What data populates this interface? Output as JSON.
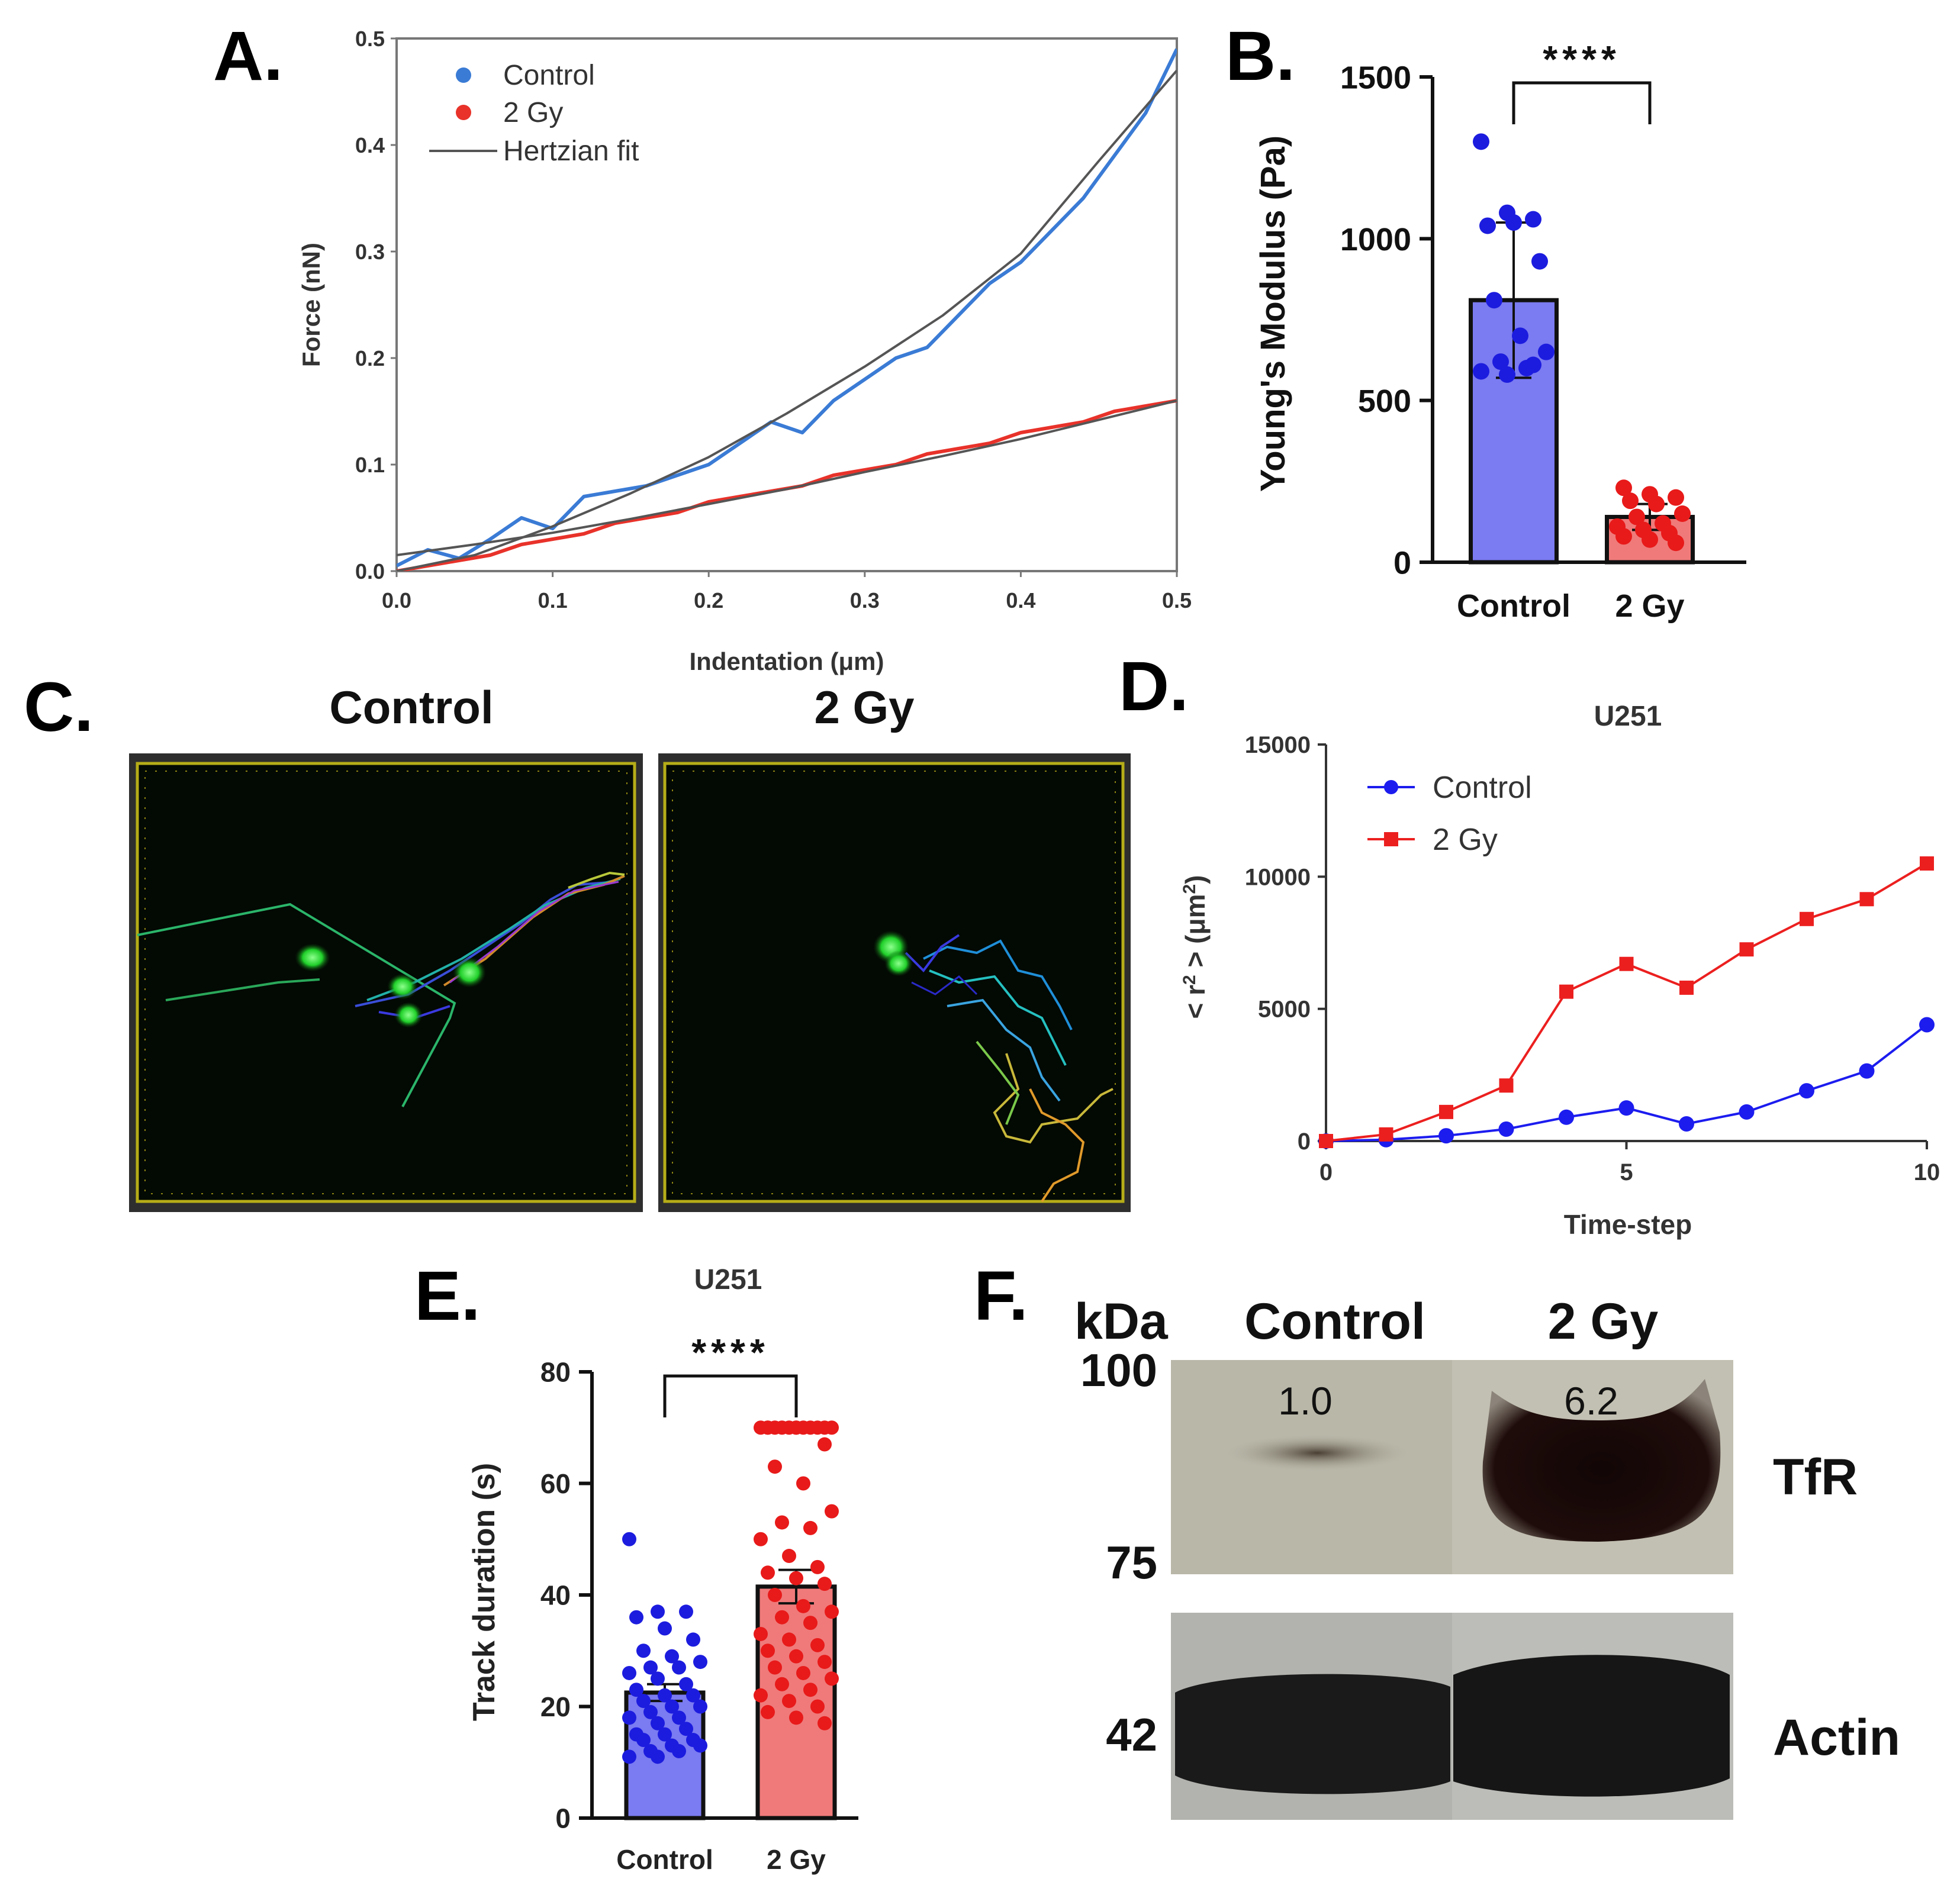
{
  "panels": {
    "A": {
      "letter": "A."
    },
    "B": {
      "letter": "B."
    },
    "C": {
      "letter": "C.",
      "titles": [
        "Control",
        "2 Gy"
      ]
    },
    "D": {
      "letter": "D."
    },
    "E": {
      "letter": "E."
    },
    "F": {
      "letter": "F."
    }
  },
  "chart_data": [
    {
      "id": "A",
      "type": "line",
      "title": "",
      "xlabel": "Indentation (μm)",
      "ylabel": "Force (nN)",
      "xlim": [
        0.0,
        0.5
      ],
      "ylim": [
        0.0,
        0.5
      ],
      "xticks": [
        "0.0",
        "0.1",
        "0.2",
        "0.3",
        "0.4",
        "0.5"
      ],
      "yticks": [
        "0.0",
        "0.1",
        "0.2",
        "0.3",
        "0.4",
        "0.5"
      ],
      "legend_position": "top-left",
      "series": [
        {
          "name": "Control",
          "color": "#3a7bd5",
          "x": [
            0.0,
            0.02,
            0.04,
            0.06,
            0.08,
            0.1,
            0.12,
            0.14,
            0.16,
            0.18,
            0.2,
            0.22,
            0.24,
            0.26,
            0.28,
            0.3,
            0.32,
            0.34,
            0.36,
            0.38,
            0.4,
            0.42,
            0.44,
            0.46,
            0.48,
            0.5
          ],
          "y": [
            0.005,
            0.02,
            0.012,
            0.03,
            0.05,
            0.04,
            0.07,
            0.075,
            0.08,
            0.09,
            0.1,
            0.12,
            0.14,
            0.13,
            0.16,
            0.18,
            0.2,
            0.21,
            0.24,
            0.27,
            0.29,
            0.32,
            0.35,
            0.39,
            0.43,
            0.49
          ]
        },
        {
          "name": "2 Gy",
          "color": "#e8322a",
          "x": [
            0.0,
            0.02,
            0.04,
            0.06,
            0.08,
            0.1,
            0.12,
            0.14,
            0.16,
            0.18,
            0.2,
            0.22,
            0.24,
            0.26,
            0.28,
            0.3,
            0.32,
            0.34,
            0.36,
            0.38,
            0.4,
            0.42,
            0.44,
            0.46,
            0.48,
            0.5
          ],
          "y": [
            0.0,
            0.005,
            0.01,
            0.015,
            0.025,
            0.03,
            0.035,
            0.045,
            0.05,
            0.055,
            0.065,
            0.07,
            0.075,
            0.08,
            0.09,
            0.095,
            0.1,
            0.11,
            0.115,
            0.12,
            0.13,
            0.135,
            0.14,
            0.15,
            0.155,
            0.16
          ]
        },
        {
          "name": "Hertzian fit",
          "color": "#555555",
          "x": [
            0.0,
            0.05,
            0.1,
            0.15,
            0.2,
            0.25,
            0.3,
            0.35,
            0.4,
            0.45,
            0.5
          ],
          "y": [
            0.0,
            0.015,
            0.042,
            0.073,
            0.107,
            0.148,
            0.192,
            0.24,
            0.298,
            0.385,
            0.47
          ]
        },
        {
          "name": "",
          "color": "#555555",
          "x": [
            0.0,
            0.05,
            0.1,
            0.15,
            0.2,
            0.25,
            0.3,
            0.35,
            0.4,
            0.45,
            0.5
          ],
          "y": [
            0.015,
            0.025,
            0.036,
            0.049,
            0.063,
            0.077,
            0.093,
            0.108,
            0.124,
            0.142,
            0.16
          ]
        }
      ]
    },
    {
      "id": "B",
      "type": "bar",
      "title": "",
      "xlabel": "",
      "ylabel": "Young's Modulus (Pa)",
      "ylim": [
        0,
        1500
      ],
      "yticks": [
        "0",
        "500",
        "1000",
        "1500"
      ],
      "categories": [
        "Control",
        "2 Gy"
      ],
      "values": [
        810,
        140
      ],
      "errors": [
        240,
        40
      ],
      "colors": [
        "#7b7bf2",
        "#f07a7a"
      ],
      "dot_colors": [
        "#1c1cdf",
        "#e81a1a"
      ],
      "points": [
        [
          1300,
          1080,
          1060,
          1040,
          1050,
          930,
          810,
          700,
          650,
          620,
          600,
          590,
          580,
          610
        ],
        [
          230,
          210,
          200,
          190,
          180,
          150,
          140,
          120,
          110,
          100,
          90,
          80,
          70,
          60
        ]
      ],
      "significance": "****"
    },
    {
      "id": "D",
      "type": "line",
      "title": "U251",
      "xlabel": "Time-step",
      "ylabel": "< r² > (μm²)",
      "ylabel_main": "< r",
      "ylabel_sup": "2",
      "ylabel_tail": " > (μm",
      "ylabel_sup2": "2",
      "ylabel_end": ")",
      "xlim": [
        0,
        10
      ],
      "ylim": [
        0,
        15000
      ],
      "xticks": [
        "0",
        "5",
        "10"
      ],
      "yticks": [
        "0",
        "5000",
        "10000",
        "15000"
      ],
      "legend_position": "top-left",
      "series": [
        {
          "name": "Control",
          "color": "#1c1cef",
          "marker": "circle",
          "x": [
            0,
            1,
            2,
            3,
            4,
            5,
            6,
            7,
            8,
            9,
            10
          ],
          "y": [
            0,
            50,
            200,
            450,
            900,
            1250,
            650,
            1100,
            1900,
            2650,
            4400
          ]
        },
        {
          "name": "2 Gy",
          "color": "#ec1f1f",
          "marker": "square",
          "x": [
            0,
            1,
            2,
            3,
            4,
            5,
            6,
            7,
            8,
            9,
            10
          ],
          "y": [
            0,
            250,
            1100,
            2100,
            5650,
            6700,
            5800,
            7250,
            8400,
            9150,
            10500
          ]
        }
      ]
    },
    {
      "id": "E",
      "type": "bar",
      "title": "U251",
      "xlabel": "",
      "ylabel": "Track duration (s)",
      "ylim": [
        0,
        80
      ],
      "yticks": [
        "0",
        "20",
        "40",
        "60",
        "80"
      ],
      "categories": [
        "Control",
        "2 Gy"
      ],
      "values": [
        22.5,
        41.5
      ],
      "errors": [
        1.5,
        3.0
      ],
      "colors": [
        "#7b7bf2",
        "#f07a7a"
      ],
      "dot_colors": [
        "#1c1cdf",
        "#e81a1a"
      ],
      "points": [
        [
          50,
          37,
          37,
          36,
          34,
          32,
          30,
          29,
          28,
          27,
          27,
          26,
          25,
          24,
          23,
          22,
          22,
          21,
          20,
          20,
          19,
          18,
          18,
          17,
          16,
          15,
          15,
          14,
          14,
          13,
          13,
          12,
          12,
          11,
          11
        ],
        [
          70,
          70,
          70,
          70,
          70,
          70,
          70,
          70,
          70,
          70,
          70,
          70,
          70,
          67,
          63,
          60,
          55,
          53,
          52,
          50,
          47,
          45,
          44,
          43,
          42,
          40,
          38,
          37,
          36,
          35,
          33,
          32,
          31,
          30,
          29,
          28,
          27,
          26,
          25,
          24,
          23,
          22,
          21,
          20,
          19,
          18,
          17
        ]
      ],
      "significance": "****"
    }
  ],
  "blot": {
    "unit": "kDa",
    "lanes": [
      "Control",
      "2 Gy"
    ],
    "markers": [
      "100",
      "75",
      "42"
    ],
    "quant": [
      "1.0",
      "6.2"
    ],
    "bands": [
      "TfR",
      "Actin"
    ]
  }
}
